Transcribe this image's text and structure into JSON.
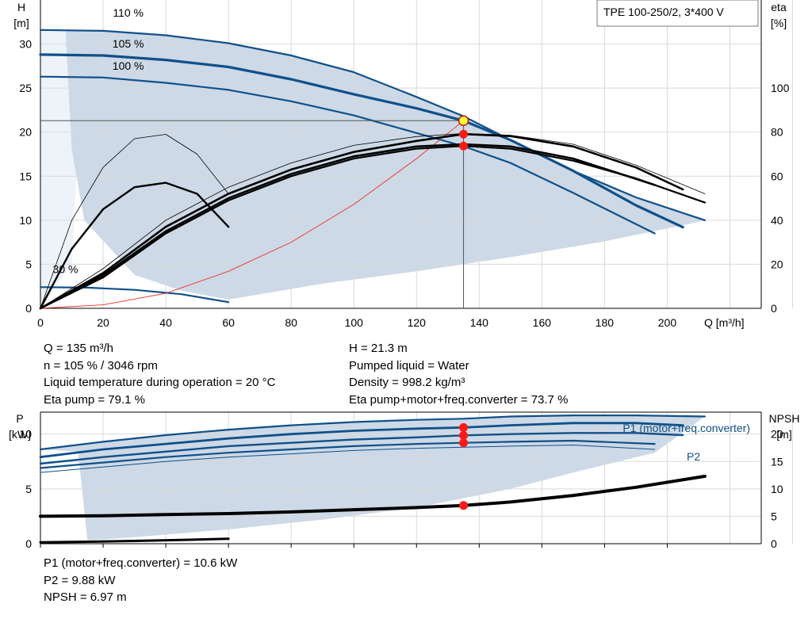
{
  "chart_data": [
    {
      "type": "line",
      "title": "TPE 100-250/2, 3*400 V",
      "x_axis": {
        "label": "Q [m³/h]",
        "range": [
          0,
          230
        ],
        "ticks": [
          0,
          20,
          40,
          60,
          80,
          100,
          120,
          140,
          160,
          180,
          200
        ]
      },
      "y_axis_left": {
        "label_line1": "H",
        "label_line2": "[m]",
        "range": [
          0,
          35
        ],
        "ticks": [
          0,
          5,
          10,
          15,
          20,
          25,
          30
        ]
      },
      "y_axis_right": {
        "label_line1": "eta",
        "label_line2": "[%]",
        "range": [
          0,
          140
        ],
        "ticks": [
          0,
          20,
          40,
          60,
          80,
          100
        ]
      },
      "grid": true,
      "series": [
        {
          "name": "110 %",
          "kind": "head",
          "color": "#10508a",
          "width": 2.2,
          "x": [
            0,
            20,
            40,
            60,
            80,
            100,
            120,
            135,
            150,
            170,
            190,
            212
          ],
          "y": [
            31.6,
            31.5,
            31.0,
            30.1,
            28.7,
            26.8,
            24.0,
            21.8,
            19.1,
            15.6,
            12.6,
            10.0
          ]
        },
        {
          "name": "105 %",
          "kind": "head",
          "color": "#10508a",
          "width": 3.2,
          "x": [
            0,
            20,
            40,
            60,
            80,
            100,
            120,
            135,
            150,
            170,
            190,
            205
          ],
          "y": [
            28.8,
            28.7,
            28.2,
            27.4,
            26.0,
            24.3,
            22.7,
            21.3,
            19.1,
            15.6,
            11.7,
            9.2
          ]
        },
        {
          "name": "100 %",
          "kind": "head",
          "color": "#10508a",
          "width": 2.2,
          "x": [
            0,
            20,
            40,
            60,
            80,
            100,
            120,
            135,
            150,
            170,
            196
          ],
          "y": [
            26.3,
            26.2,
            25.6,
            24.8,
            23.5,
            21.9,
            19.9,
            18.4,
            16.5,
            13.1,
            8.5
          ]
        },
        {
          "name": "30 %",
          "kind": "head",
          "color": "#10508a",
          "width": 2.2,
          "x": [
            0,
            15,
            30,
            45,
            60
          ],
          "y": [
            2.4,
            2.35,
            2.1,
            1.6,
            0.7
          ]
        },
        {
          "name": "",
          "kind": "system",
          "color": "#e8302a",
          "width": 0.9,
          "x": [
            0,
            20,
            40,
            60,
            80,
            100,
            120,
            135
          ],
          "y": [
            0,
            0.4,
            1.7,
            4.2,
            7.5,
            11.8,
            17.0,
            21.3
          ]
        },
        {
          "name": "",
          "kind": "eta",
          "color": "#000000",
          "width": 0.8,
          "x": [
            0,
            10,
            20,
            30,
            40,
            50,
            60
          ],
          "y": [
            0,
            40,
            64,
            77,
            79,
            70,
            52
          ]
        },
        {
          "name": "",
          "kind": "eta",
          "color": "#000000",
          "width": 2.4,
          "x": [
            0,
            10,
            20,
            30,
            40,
            50,
            60
          ],
          "y": [
            0,
            27,
            45,
            55,
            57,
            52,
            37
          ]
        },
        {
          "name": "",
          "kind": "eta",
          "color": "#000000",
          "width": 0.8,
          "x": [
            0,
            20,
            40,
            60,
            80,
            100,
            120,
            135,
            150,
            170,
            190,
            212
          ],
          "y": [
            0,
            18,
            40,
            55,
            66,
            74,
            78,
            79.4,
            78.6,
            74.5,
            65,
            52
          ]
        },
        {
          "name": "",
          "kind": "eta",
          "color": "#000000",
          "width": 2.6,
          "x": [
            0,
            20,
            40,
            60,
            80,
            100,
            120,
            135,
            150,
            170,
            190,
            205
          ],
          "y": [
            0,
            16,
            37,
            52,
            63,
            71,
            76,
            79.1,
            78.2,
            73.5,
            64,
            54
          ]
        },
        {
          "name": "",
          "kind": "eta",
          "color": "#000000",
          "width": 2.6,
          "x": [
            0,
            20,
            40,
            60,
            80,
            100,
            120,
            135,
            150,
            170,
            196
          ],
          "y": [
            0,
            15,
            35,
            50,
            61,
            69,
            73.5,
            74.5,
            73.5,
            68,
            56
          ]
        },
        {
          "name": "",
          "kind": "eta",
          "color": "#000000",
          "width": 2.2,
          "x": [
            0,
            20,
            40,
            60,
            80,
            100,
            120,
            135,
            150,
            170,
            190,
            212
          ],
          "y": [
            0,
            14,
            34,
            49,
            60,
            68,
            72.5,
            73.7,
            72.5,
            67,
            59,
            48
          ]
        }
      ],
      "operating_point": {
        "Q": 135,
        "H": 21.3,
        "eta_values": [
          79.1,
          73.7
        ]
      },
      "colors": {
        "envelope": "#cdd9e6",
        "grid": "#d9d9d9",
        "head": "#10508a",
        "marker": "#ff1a1a",
        "duty": "#ffff33"
      }
    },
    {
      "type": "line",
      "x_axis": {
        "range": [
          0,
          230
        ],
        "ticks": [
          0,
          20,
          40,
          60,
          80,
          100,
          120,
          140,
          160,
          180,
          200
        ]
      },
      "y_axis_left": {
        "label_line1": "P",
        "label_line2": "[kW]",
        "range": [
          0,
          12
        ],
        "ticks": [
          0,
          5,
          10
        ]
      },
      "y_axis_right": {
        "label_line1": "NPSH",
        "label_line2": "[m]",
        "range": [
          0,
          24
        ],
        "ticks": [
          0,
          5,
          10,
          15,
          20
        ]
      },
      "grid": true,
      "series": [
        {
          "name": "P1 (motor+freq.converter)",
          "kind": "power",
          "color": "#10508a",
          "width": 2.2,
          "x": [
            0,
            20,
            40,
            60,
            80,
            100,
            120,
            135,
            150,
            170,
            190,
            212
          ],
          "y": [
            8.6,
            9.3,
            9.9,
            10.4,
            10.8,
            11.1,
            11.3,
            11.4,
            11.6,
            11.7,
            11.7,
            11.6
          ]
        },
        {
          "name": "",
          "kind": "power",
          "color": "#10508a",
          "width": 2.8,
          "x": [
            0,
            20,
            40,
            60,
            80,
            100,
            120,
            135,
            150,
            170,
            190,
            205
          ],
          "y": [
            7.9,
            8.6,
            9.1,
            9.6,
            10.0,
            10.3,
            10.5,
            10.6,
            10.8,
            11.0,
            11.0,
            10.8
          ]
        },
        {
          "name": "P2",
          "kind": "power",
          "color": "#10508a",
          "width": 2.4,
          "x": [
            0,
            20,
            40,
            60,
            80,
            100,
            120,
            135,
            150,
            170,
            190,
            205
          ],
          "y": [
            7.3,
            7.9,
            8.4,
            8.9,
            9.2,
            9.5,
            9.7,
            9.88,
            10.0,
            10.1,
            10.1,
            9.9
          ]
        },
        {
          "name": "",
          "kind": "power",
          "color": "#10508a",
          "width": 2.2,
          "x": [
            0,
            20,
            40,
            60,
            80,
            100,
            120,
            135,
            150,
            170,
            196
          ],
          "y": [
            6.9,
            7.4,
            7.9,
            8.3,
            8.6,
            8.9,
            9.1,
            9.2,
            9.3,
            9.4,
            9.1
          ]
        },
        {
          "name": "",
          "kind": "power",
          "color": "#10508a",
          "width": 1.0,
          "x": [
            0,
            20,
            40,
            60,
            80,
            100,
            120,
            135,
            150,
            170,
            196
          ],
          "y": [
            6.5,
            7.0,
            7.5,
            7.9,
            8.2,
            8.5,
            8.7,
            8.8,
            8.9,
            9.0,
            8.6
          ]
        },
        {
          "name": "",
          "kind": "npsh",
          "color": "#000000",
          "width": 4,
          "x": [
            0,
            20,
            40,
            60,
            80,
            100,
            120,
            135,
            150,
            170,
            190,
            212
          ],
          "y": [
            5.0,
            5.1,
            5.3,
            5.5,
            5.8,
            6.2,
            6.6,
            6.97,
            7.6,
            8.8,
            10.3,
            12.3
          ]
        },
        {
          "name": "",
          "kind": "power",
          "color": "#000000",
          "width": 3,
          "x": [
            0,
            15,
            30,
            45,
            60
          ],
          "y": [
            0.12,
            0.18,
            0.25,
            0.35,
            0.45
          ]
        }
      ],
      "operating_point": {
        "Q": 135,
        "P": [
          10.6,
          9.88
        ],
        "NPSH": 6.97
      },
      "colors": {
        "envelope": "#cdd9e6",
        "grid": "#d9d9d9",
        "marker": "#ff1a1a"
      }
    }
  ],
  "info": {
    "left": [
      "Q = 135 m³/h",
      "n = 105 % / 3046 rpm",
      "Liquid temperature during operation = 20 °C",
      "Eta pump = 79.1 %"
    ],
    "right": [
      "H = 21.3 m",
      "Pumped liquid = Water",
      "Density = 998.2 kg/m³",
      "Eta pump+motor+freq.converter = 73.7 %"
    ],
    "bottom": [
      "P1 (motor+freq.converter) = 10.6 kW",
      "P2 = 9.88 kW",
      "NPSH = 6.97 m"
    ]
  }
}
